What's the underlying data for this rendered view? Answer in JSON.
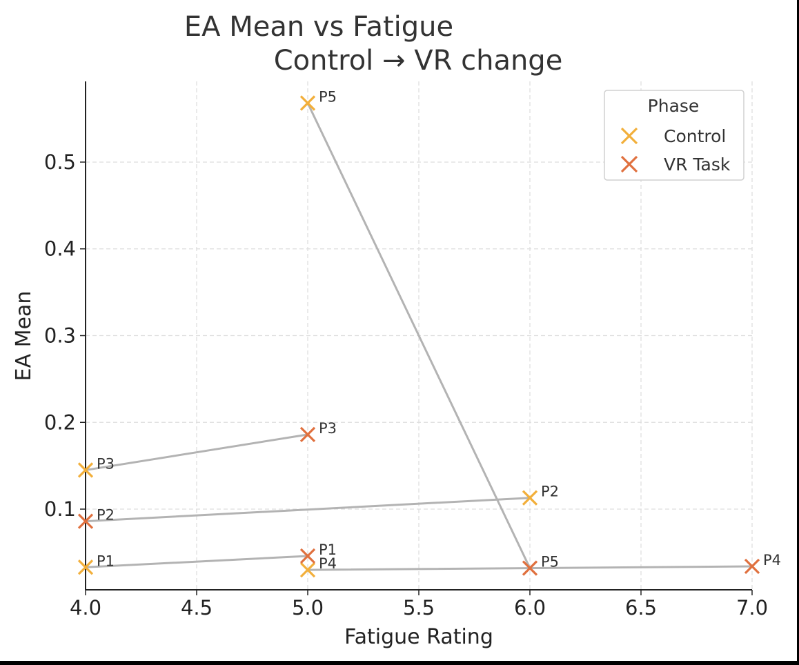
{
  "chart_data": {
    "type": "scatter",
    "title_line1": "EA Mean vs Fatigue",
    "title_line2": "Control → VR change",
    "xlabel": "Fatigue Rating",
    "ylabel": "EA Mean",
    "xlim": [
      4.0,
      7.0
    ],
    "ylim": [
      0.007,
      0.593
    ],
    "x_ticks": [
      4.0,
      4.5,
      5.0,
      5.5,
      6.0,
      6.5,
      7.0
    ],
    "x_tick_labels": [
      "4.0",
      "4.5",
      "5.0",
      "5.5",
      "6.0",
      "6.5",
      "7.0"
    ],
    "y_ticks": [
      0.1,
      0.2,
      0.3,
      0.4,
      0.5
    ],
    "y_tick_labels": [
      "0.1",
      "0.2",
      "0.3",
      "0.4",
      "0.5"
    ],
    "grid": true,
    "legend": {
      "title": "Phase",
      "placement": "top-right",
      "entries": [
        "Control",
        "VR Task"
      ]
    },
    "series": [
      {
        "name": "Control",
        "color": "#F2AF3B",
        "marker": "x",
        "points": [
          {
            "label": "P1",
            "x": 4.0,
            "y": 0.033
          },
          {
            "label": "P2",
            "x": 6.0,
            "y": 0.113
          },
          {
            "label": "P3",
            "x": 4.0,
            "y": 0.145
          },
          {
            "label": "P4",
            "x": 5.0,
            "y": 0.03
          },
          {
            "label": "P5",
            "x": 5.0,
            "y": 0.568
          }
        ]
      },
      {
        "name": "VR Task",
        "color": "#E0703E",
        "marker": "x",
        "points": [
          {
            "label": "P1",
            "x": 5.0,
            "y": 0.046
          },
          {
            "label": "P2",
            "x": 4.0,
            "y": 0.086
          },
          {
            "label": "P3",
            "x": 5.0,
            "y": 0.186
          },
          {
            "label": "P4",
            "x": 7.0,
            "y": 0.034
          },
          {
            "label": "P5",
            "x": 6.0,
            "y": 0.032
          }
        ]
      }
    ],
    "connector_color": "#B3B3B3"
  }
}
